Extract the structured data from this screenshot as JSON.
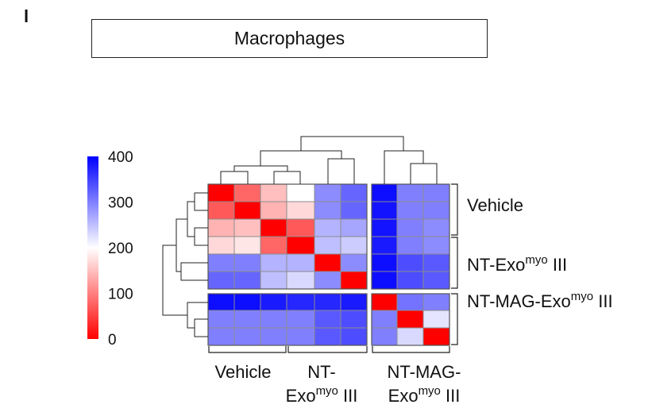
{
  "panel_letter": "l",
  "chart_data": {
    "type": "heatmap",
    "title": "Macrophages",
    "groups": [
      {
        "name": "Vehicle",
        "label_lines": [
          "Vehicle"
        ]
      },
      {
        "name": "NT-Exo myo III",
        "label_lines": [
          "NT-",
          "Exo myo III"
        ]
      },
      {
        "name": "NT-MAG-Exo myo III",
        "label_lines": [
          "NT-MAG-",
          "Exo myo III"
        ]
      }
    ],
    "row_labels": [
      {
        "base": "Vehicle",
        "sup": "",
        "tail": ""
      },
      {
        "base": "NT-Exo",
        "sup": "myo",
        "tail": " III"
      },
      {
        "base": "NT-MAG-Exo",
        "sup": "myo",
        "tail": " III"
      }
    ],
    "colorbar": {
      "min": 0,
      "max": 400,
      "ticks": [
        "400",
        "300",
        "200",
        "100",
        "0"
      ],
      "low_color": "#ff0000",
      "mid_color": "#ffffff",
      "high_color": "#0000ff"
    },
    "values": [
      [
        0,
        80,
        150,
        200,
        290,
        320,
        390,
        300,
        300
      ],
      [
        70,
        0,
        140,
        170,
        290,
        320,
        385,
        300,
        300
      ],
      [
        140,
        150,
        0,
        70,
        260,
        270,
        385,
        300,
        290
      ],
      [
        170,
        180,
        80,
        0,
        250,
        240,
        380,
        300,
        290
      ],
      [
        300,
        300,
        260,
        260,
        0,
        290,
        390,
        340,
        330
      ],
      [
        320,
        320,
        250,
        230,
        290,
        0,
        390,
        340,
        330
      ],
      [
        390,
        390,
        380,
        370,
        370,
        380,
        0,
        310,
        300
      ],
      [
        300,
        300,
        300,
        300,
        330,
        340,
        300,
        0,
        220
      ],
      [
        300,
        300,
        300,
        300,
        330,
        340,
        300,
        230,
        0
      ]
    ]
  }
}
